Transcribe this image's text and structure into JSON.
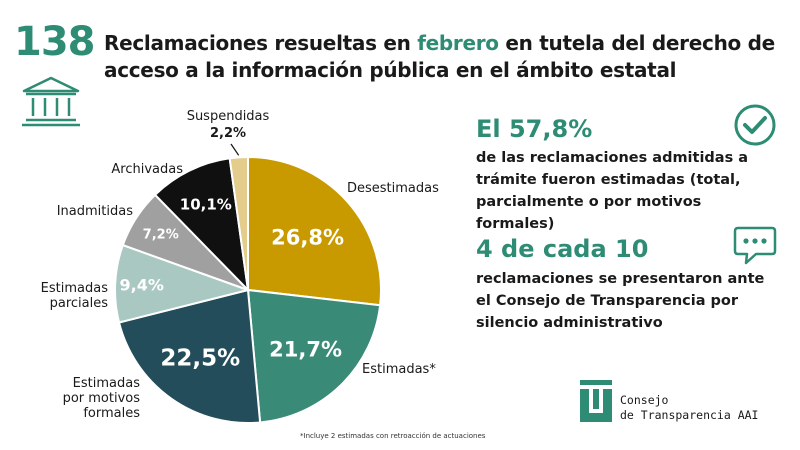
{
  "header": {
    "number": "138",
    "title_part1": "Reclamaciones resueltas en ",
    "title_accent": "febrero",
    "title_part2": " en tutela del derecho de acceso a la información pública en el ámbito estatal"
  },
  "stats": [
    {
      "big": "El 57,8%",
      "text": "de las reclamaciones admitidas a trámite fueron estimadas (total, parcialmente o por motivos formales)"
    },
    {
      "big": "4 de cada 10",
      "text": "reclamaciones se presentaron ante el Consejo de Transparencia por silencio administrativo"
    }
  ],
  "icons": {
    "building": "institution-building-icon",
    "check": "check-circle-icon",
    "chat": "speech-bubble-icon"
  },
  "logo": {
    "line1": "Consejo",
    "line2": "de Transparencia AAI"
  },
  "footnote": "*Incluye 2 estimadas con retroacción de actuaciones",
  "colors": {
    "accent": "#2e8c74"
  },
  "chart_data": {
    "type": "pie",
    "start": "12 o'clock, clockwise",
    "slices": [
      {
        "label": [
          "Desestimadas"
        ],
        "value": 26.8,
        "display": "26,8%",
        "color": "#c89a00",
        "text_color": "#ffffff"
      },
      {
        "label": [
          "Estimadas*"
        ],
        "value": 21.7,
        "display": "21,7%",
        "color": "#3a8a78",
        "text_color": "#ffffff"
      },
      {
        "label": [
          "Estimadas",
          "por motivos",
          "formales"
        ],
        "value": 22.5,
        "display": "22,5%",
        "color": "#234d5a",
        "text_color": "#ffffff"
      },
      {
        "label": [
          "Estimadas",
          "parciales"
        ],
        "value": 9.4,
        "display": "9,4%",
        "color": "#a9c8c2",
        "text_color": "#ffffff"
      },
      {
        "label": [
          "Inadmitidas"
        ],
        "value": 7.2,
        "display": "7,2%",
        "color": "#a0a0a0",
        "text_color": "#ffffff"
      },
      {
        "label": [
          "Archivadas"
        ],
        "value": 10.1,
        "display": "10,1%",
        "color": "#101010",
        "text_color": "#ffffff"
      },
      {
        "label": [
          "Suspendidas"
        ],
        "value": 2.2,
        "display": "2,2%",
        "color": "#e3cc8c",
        "text_color": "#1a1a1a"
      }
    ]
  }
}
